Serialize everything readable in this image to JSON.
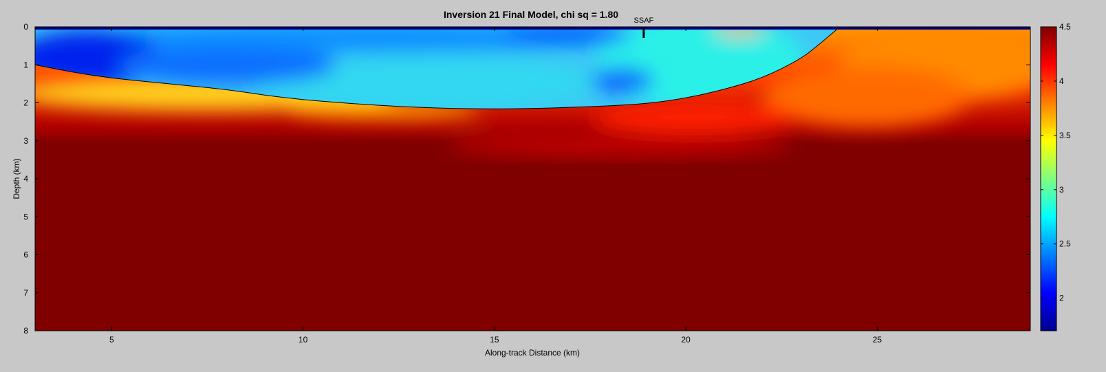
{
  "chart_data": {
    "type": "heatmap",
    "title": "Inversion 21 Final Model, chi sq = 1.80",
    "xlabel": "Along-track Distance (km)",
    "ylabel": "Depth (km)",
    "xlim": [
      3,
      29
    ],
    "ylim": [
      8,
      0
    ],
    "x_ticks": [
      5,
      10,
      15,
      20,
      25
    ],
    "y_ticks": [
      0,
      1,
      2,
      3,
      4,
      5,
      6,
      7,
      8
    ],
    "colorbar": {
      "colormap": "jet",
      "range": [
        1.7,
        4.5
      ],
      "ticks": [
        2,
        2.5,
        3,
        3.5,
        4,
        4.5
      ],
      "tick_labels": [
        "2",
        "2.5",
        "3",
        "3.5",
        "4",
        "4.5"
      ]
    },
    "annotation": {
      "label": "SSAF",
      "x": 18.9,
      "depth": 0
    },
    "basement_boundary": [
      [
        3.0,
        1.0
      ],
      [
        4.0,
        1.2
      ],
      [
        5.0,
        1.35
      ],
      [
        6.0,
        1.45
      ],
      [
        7.0,
        1.55
      ],
      [
        8.0,
        1.65
      ],
      [
        9.0,
        1.8
      ],
      [
        10.0,
        1.92
      ],
      [
        11.0,
        2.0
      ],
      [
        12.0,
        2.07
      ],
      [
        13.0,
        2.12
      ],
      [
        14.0,
        2.15
      ],
      [
        15.0,
        2.16
      ],
      [
        16.0,
        2.15
      ],
      [
        17.0,
        2.12
      ],
      [
        18.0,
        2.08
      ],
      [
        19.0,
        2.02
      ],
      [
        20.0,
        1.88
      ],
      [
        21.0,
        1.65
      ],
      [
        22.0,
        1.35
      ],
      [
        23.0,
        0.85
      ],
      [
        23.5,
        0.45
      ],
      [
        24.0,
        0.02
      ]
    ]
  }
}
